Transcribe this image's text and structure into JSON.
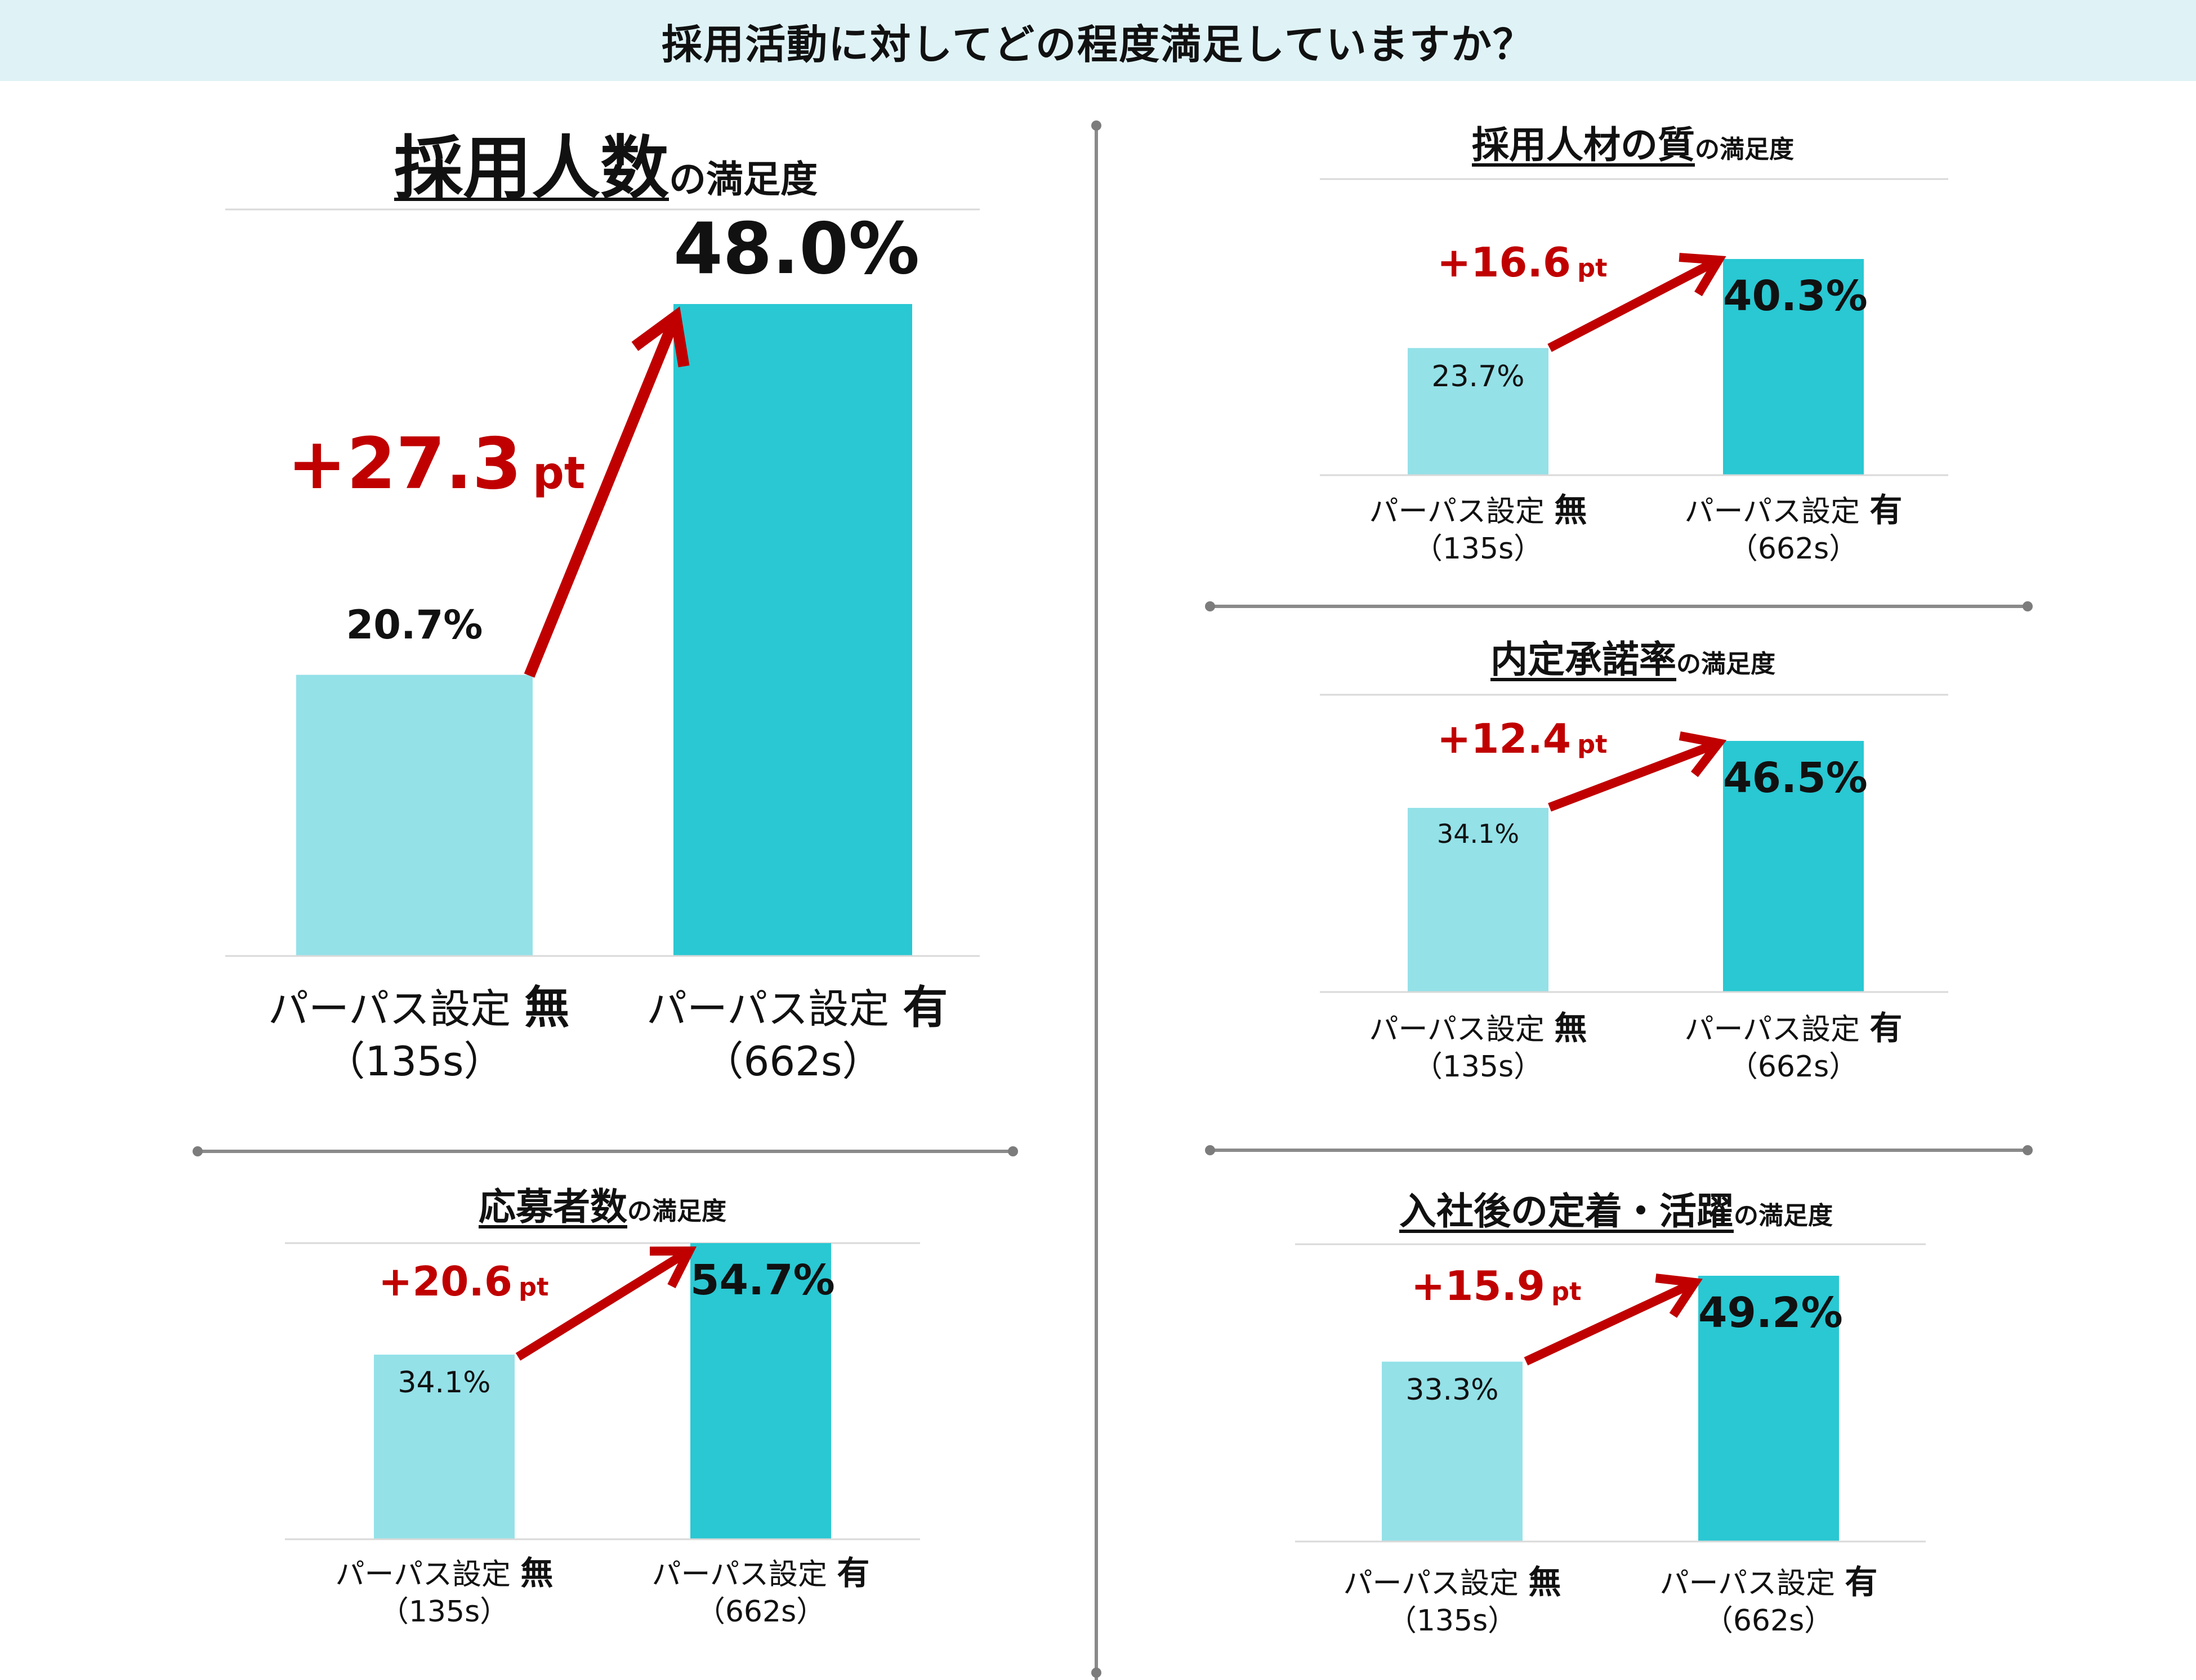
{
  "page_title": "採用活動に対してどの程度満足していますか？",
  "colors": {
    "bar_without": "#94e1e8",
    "bar_with": "#29c8d3",
    "arrow": "#c00000",
    "banner": "#dff3f7",
    "divider": "#8a8a8a"
  },
  "chart_data": [
    {
      "type": "bar",
      "title": "採用人数",
      "title_suffix": "の満足度",
      "categories": [
        {
          "label": "パーパス設定",
          "flag": "無",
          "sample": "（135s）"
        },
        {
          "label": "パーパス設定",
          "flag": "有",
          "sample": "（662s）"
        }
      ],
      "values": [
        20.7,
        48.0
      ],
      "value_labels": [
        "20.7%",
        "48.0%"
      ],
      "difference": "+27.3",
      "difference_unit": "pt",
      "ylim": [
        0,
        48.0
      ]
    },
    {
      "type": "bar",
      "title": "採用人材の質",
      "title_suffix": "の満足度",
      "categories": [
        {
          "label": "パーパス設定",
          "flag": "無",
          "sample": "（135s）"
        },
        {
          "label": "パーパス設定",
          "flag": "有",
          "sample": "（662s）"
        }
      ],
      "values": [
        23.7,
        40.3
      ],
      "value_labels": [
        "23.7%",
        "40.3%"
      ],
      "difference": "+16.6",
      "difference_unit": "pt",
      "ylim": [
        0,
        40.3
      ]
    },
    {
      "type": "bar",
      "title": "内定承諾率",
      "title_suffix": "の満足度",
      "categories": [
        {
          "label": "パーパス設定",
          "flag": "無",
          "sample": "（135s）"
        },
        {
          "label": "パーパス設定",
          "flag": "有",
          "sample": "（662s）"
        }
      ],
      "values": [
        34.1,
        46.5
      ],
      "value_labels": [
        "34.1%",
        "46.5%"
      ],
      "difference": "+12.4",
      "difference_unit": "pt",
      "ylim": [
        0,
        46.5
      ]
    },
    {
      "type": "bar",
      "title": "応募者数",
      "title_suffix": "の満足度",
      "categories": [
        {
          "label": "パーパス設定",
          "flag": "無",
          "sample": "（135s）"
        },
        {
          "label": "パーパス設定",
          "flag": "有",
          "sample": "（662s）"
        }
      ],
      "values": [
        34.1,
        54.7
      ],
      "value_labels": [
        "34.1%",
        "54.7%"
      ],
      "difference": "+20.6",
      "difference_unit": "pt",
      "ylim": [
        0,
        54.7
      ]
    },
    {
      "type": "bar",
      "title": "入社後の定着・活躍",
      "title_suffix": "の満足度",
      "categories": [
        {
          "label": "パーパス設定",
          "flag": "無",
          "sample": "（135s）"
        },
        {
          "label": "パーパス設定",
          "flag": "有",
          "sample": "（662s）"
        }
      ],
      "values": [
        33.3,
        49.2
      ],
      "value_labels": [
        "33.3%",
        "49.2%"
      ],
      "difference": "+15.9",
      "difference_unit": "pt",
      "ylim": [
        0,
        49.2
      ]
    }
  ]
}
